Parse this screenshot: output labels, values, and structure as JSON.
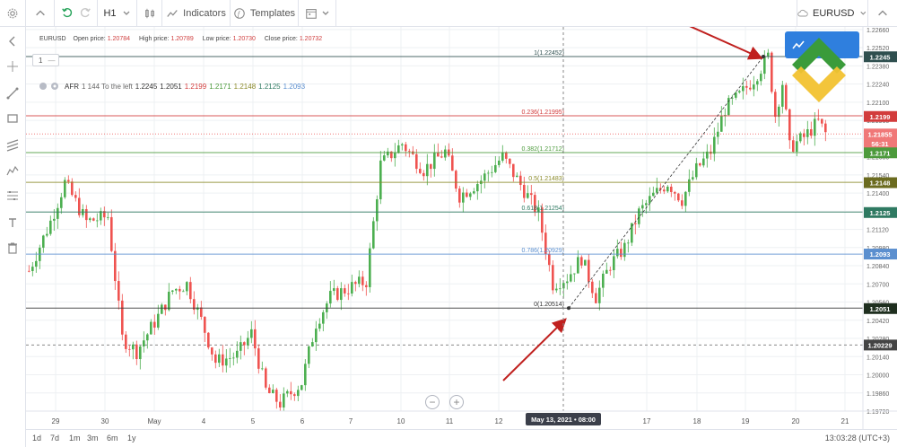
{
  "toolbar": {
    "timeframe": "H1",
    "indicators_label": "Indicators",
    "templates_label": "Templates",
    "symbol": "EURUSD"
  },
  "legend": {
    "symbol": "EURUSD",
    "open_label": "Open price:",
    "open": "1.20784",
    "high_label": "High price:",
    "high": "1.20789",
    "low_label": "Low price:",
    "low": "1.20730",
    "close_label": "Close price:",
    "close": "1.20732"
  },
  "overlay": {
    "one_box": "1",
    "one_box_dash": "—"
  },
  "afr": {
    "label": "AFR",
    "params": "1 144 To the left",
    "values": [
      {
        "text": "1.2245",
        "color": "#333333"
      },
      {
        "text": "1.2051",
        "color": "#333333"
      },
      {
        "text": "1.2199",
        "color": "#d23c3c"
      },
      {
        "text": "1.2171",
        "color": "#4c9a3c"
      },
      {
        "text": "1.2148",
        "color": "#8a8a2a"
      },
      {
        "text": "1.2125",
        "color": "#2f7a62"
      },
      {
        "text": "1.2093",
        "color": "#5b8fcf"
      }
    ]
  },
  "fib_labels": [
    {
      "text": "1(1.22452)",
      "price": 1.22452,
      "color": "#2f4f4f"
    },
    {
      "text": "0.236(1.21995)",
      "price": 1.21995,
      "color": "#d23c3c"
    },
    {
      "text": "0.382(1.21712)",
      "price": 1.21712,
      "color": "#4c9a3c"
    },
    {
      "text": "0.5(1.21483)",
      "price": 1.21483,
      "color": "#8a8a2a"
    },
    {
      "text": "0.618(1.21254)",
      "price": 1.21254,
      "color": "#2f7a62"
    },
    {
      "text": "0.786(1.20929)",
      "price": 1.20929,
      "color": "#5b8fcf"
    },
    {
      "text": "0(1.20514)",
      "price": 1.20514,
      "color": "#333333"
    }
  ],
  "price_axis_ticks": [
    "1.22660",
    "1.22520",
    "1.22380",
    "1.22240",
    "1.22100",
    "1.21960",
    "1.21820",
    "1.21680",
    "1.21540",
    "1.21400",
    "1.21260",
    "1.21120",
    "1.20980",
    "1.20840",
    "1.20700",
    "1.20560",
    "1.20420",
    "1.20280",
    "1.20140",
    "1.20000",
    "1.19860",
    "1.19720"
  ],
  "price_tags": [
    {
      "text": "1.2245",
      "bg": "#2f4f4f",
      "price": 1.2245
    },
    {
      "text": "1.2199",
      "bg": "#d23c3c",
      "price": 1.2199
    },
    {
      "text": "1.21855",
      "bg": "#f07878",
      "price": 1.21855
    },
    {
      "text": "56:31",
      "bg": "#f07878",
      "price": 1.2178
    },
    {
      "text": "1.2171",
      "bg": "#4c9a3c",
      "price": 1.2171
    },
    {
      "text": "1.2148",
      "bg": "#6b6b1f",
      "price": 1.2148
    },
    {
      "text": "1.2125",
      "bg": "#2f7a62",
      "price": 1.2125
    },
    {
      "text": "1.2093",
      "bg": "#5b8fcf",
      "price": 1.2093
    },
    {
      "text": "1.2051",
      "bg": "#1f2f1f",
      "price": 1.2051
    },
    {
      "text": "1.20229",
      "bg": "#444444",
      "price": 1.20229
    }
  ],
  "time_axis_ticks": [
    "29",
    "30",
    "May",
    "4",
    "5",
    "6",
    "7",
    "10",
    "11",
    "12",
    "17",
    "18",
    "19",
    "20",
    "21"
  ],
  "crosshair_time_label": "May 13, 2021 • 08:00",
  "bottom": {
    "timeframes": [
      "1d",
      "7d",
      "1m",
      "3m",
      "6m",
      "1y"
    ],
    "clock": "13:03:28 (UTC+3)"
  },
  "zoom": {
    "minus": "−",
    "plus": "+"
  },
  "colors": {
    "bull": "#4caf50",
    "bear": "#ef5350",
    "arrow": "#c0201e",
    "grid": "#eef0f3"
  },
  "chart_data": {
    "type": "candlestick",
    "title": "EURUSD",
    "timeframe": "H1",
    "ylim": [
      1.1972,
      1.2268
    ],
    "x_labels": [
      "29",
      "30",
      "May",
      "4",
      "5",
      "6",
      "7",
      "10",
      "11",
      "12",
      "13",
      "17",
      "18",
      "19",
      "20",
      "21"
    ],
    "ohlc_current": {
      "open": 1.20784,
      "high": 1.20789,
      "low": 1.2073,
      "close": 1.20732
    },
    "path_points": [
      [
        0,
        1.208
      ],
      [
        6,
        1.2118
      ],
      [
        10,
        1.2148
      ],
      [
        16,
        1.2118
      ],
      [
        22,
        1.2122
      ],
      [
        26,
        1.2028
      ],
      [
        30,
        1.2018
      ],
      [
        36,
        1.2045
      ],
      [
        40,
        1.2065
      ],
      [
        44,
        1.207
      ],
      [
        48,
        1.2042
      ],
      [
        52,
        1.201
      ],
      [
        58,
        1.2015
      ],
      [
        62,
        1.2032
      ],
      [
        66,
        1.1988
      ],
      [
        70,
        1.1978
      ],
      [
        76,
        1.1994
      ],
      [
        80,
        1.204
      ],
      [
        84,
        1.206
      ],
      [
        90,
        1.2068
      ],
      [
        94,
        1.2072
      ],
      [
        98,
        1.2162
      ],
      [
        104,
        1.2178
      ],
      [
        110,
        1.2158
      ],
      [
        116,
        1.2172
      ],
      [
        120,
        1.2138
      ],
      [
        126,
        1.215
      ],
      [
        132,
        1.2168
      ],
      [
        138,
        1.2142
      ],
      [
        142,
        1.2124
      ],
      [
        146,
        1.207
      ],
      [
        150,
        1.2075
      ],
      [
        154,
        1.209
      ],
      [
        158,
        1.206
      ],
      [
        162,
        1.2085
      ],
      [
        166,
        1.2098
      ],
      [
        170,
        1.2125
      ],
      [
        174,
        1.2138
      ],
      [
        178,
        1.2148
      ],
      [
        182,
        1.2135
      ],
      [
        186,
        1.2158
      ],
      [
        190,
        1.2172
      ],
      [
        194,
        1.2205
      ],
      [
        198,
        1.2215
      ],
      [
        202,
        1.2228
      ],
      [
        206,
        1.2245
      ],
      [
        208,
        1.22
      ],
      [
        210,
        1.2225
      ],
      [
        212,
        1.2175
      ],
      [
        216,
        1.2183
      ],
      [
        220,
        1.2195
      ],
      [
        222,
        1.2186
      ]
    ],
    "fibonacci": {
      "levels": [
        {
          "ratio": "1",
          "price": 1.22452
        },
        {
          "ratio": "0.236",
          "price": 1.21995
        },
        {
          "ratio": "0.382",
          "price": 1.21712
        },
        {
          "ratio": "0.5",
          "price": 1.21483
        },
        {
          "ratio": "0.618",
          "price": 1.21254
        },
        {
          "ratio": "0.786",
          "price": 1.20929
        },
        {
          "ratio": "0",
          "price": 1.20514
        }
      ]
    },
    "horizontal_lines": [
      1.21855,
      1.20229
    ],
    "crosshair_label": "May 13, 2021 • 08:00",
    "annotations": [
      "red arrow pointing to swing high",
      "red arrow pointing to swing low",
      "dashed trendline from swing low to swing high"
    ]
  }
}
